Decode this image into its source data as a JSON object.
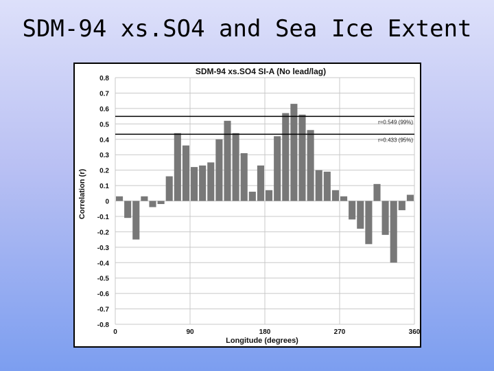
{
  "slide": {
    "title": "SDM-94 xs.SO4 and Sea Ice Extent"
  },
  "colors": {
    "bar": "#787878",
    "grid": "#c8c8c8",
    "threshold": "#000000"
  },
  "chart_data": {
    "type": "bar",
    "title": "SDM-94 xs.SO4 SI-A (No lead/lag)",
    "xlabel": "Longitude (degrees)",
    "ylabel": "Correlation (r)",
    "xlim": [
      0,
      360
    ],
    "ylim": [
      -0.8,
      0.8
    ],
    "xticks": [
      "0",
      "90",
      "180",
      "270",
      "360"
    ],
    "yticks": [
      "0.8",
      "0.7",
      "0.6",
      "0.5",
      "0.4",
      "0.3",
      "0.2",
      "0.1",
      "0",
      "-0.1",
      "-0.2",
      "-0.3",
      "-0.4",
      "-0.5",
      "-0.6",
      "-0.7",
      "-0.8"
    ],
    "grid": true,
    "bin_width": 10,
    "x": [
      5,
      15,
      25,
      35,
      45,
      55,
      65,
      75,
      85,
      95,
      105,
      115,
      125,
      135,
      145,
      155,
      165,
      175,
      185,
      195,
      205,
      215,
      225,
      235,
      245,
      255,
      265,
      275,
      285,
      295,
      305,
      315,
      325,
      335,
      345,
      355
    ],
    "values": [
      0.03,
      -0.11,
      -0.25,
      0.03,
      -0.04,
      -0.02,
      0.16,
      0.44,
      0.36,
      0.22,
      0.23,
      0.25,
      0.4,
      0.52,
      0.44,
      0.31,
      0.06,
      0.23,
      0.07,
      0.42,
      0.57,
      0.63,
      0.56,
      0.46,
      0.2,
      0.19,
      0.07,
      0.03,
      -0.12,
      -0.18,
      -0.28,
      0.11,
      -0.22,
      -0.4,
      -0.06,
      0.04
    ],
    "thresholds": [
      {
        "value": 0.549,
        "label": "r=0.549 (99%)"
      },
      {
        "value": 0.433,
        "label": "r=0.433 (95%)"
      }
    ]
  }
}
